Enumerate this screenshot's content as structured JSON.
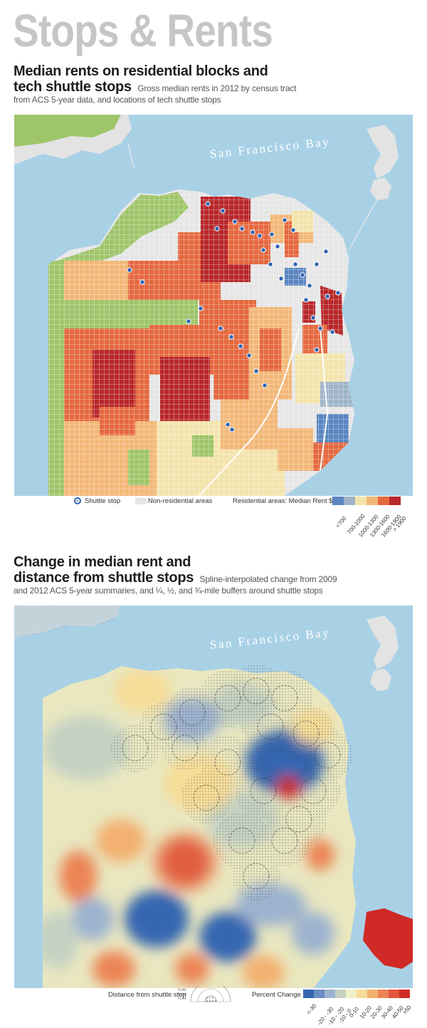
{
  "header": {
    "main_title": "Stops & Rents"
  },
  "section1": {
    "title_line1": "Median rents on residential blocks and",
    "title_line2": "tech shuttle stops",
    "subtitle_line1": "Gross median rents in 2012 by census tract",
    "subtitle_line2": "from ACS 5-year data, and locations of tech shuttle stops",
    "bay_label": "San Francisco Bay",
    "legend": {
      "shuttle_stop": "Shuttle stop",
      "non_residential": "Non-residential areas",
      "residential_label": "Residential areas: Median Rent $",
      "classes": [
        "<700",
        "700-1000",
        "1000-1300",
        "1300-1600",
        "1600-1900",
        "> 1900"
      ],
      "colors": [
        "#5b86c0",
        "#9fb4c8",
        "#f3e4ac",
        "#f2b777",
        "#e5683f",
        "#b8272a"
      ]
    },
    "colors": {
      "water": "#a9d1e6",
      "land_nonres": "#e6e6e6",
      "parks": "#9fc56a",
      "shuttle": "#2f63b1"
    }
  },
  "section2": {
    "title_line1": "Change in median rent and",
    "title_line2": "distance from shuttle stops",
    "subtitle_line1": "Spline-interpolated change from 2009",
    "subtitle_line2": "and 2012 ACS 5-year summaries, and ¼, ½, and ¾-mile buffers around shuttle stops",
    "bay_label": "San Francisco Bay",
    "legend": {
      "distance_label": "Distance from shuttle stop",
      "buffers": [
        "¾ mi",
        "½ mi",
        "¼ mi"
      ],
      "change_label": "Percent Change",
      "classes": [
        "<-30",
        "-20 - -30",
        "-10 - -20",
        "-10 - 0",
        "0-10",
        "10-20",
        "20-30",
        "30-40",
        "40-50",
        ">50"
      ],
      "colors": [
        "#3566b0",
        "#6a8fc3",
        "#9cb2cf",
        "#c5d2c2",
        "#eef0c8",
        "#f6dc97",
        "#f3b070",
        "#ec8455",
        "#e2563c",
        "#cf2a26"
      ]
    }
  }
}
